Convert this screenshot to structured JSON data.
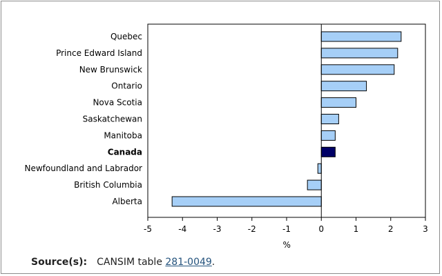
{
  "chart_data": {
    "type": "bar",
    "orientation": "horizontal",
    "categories": [
      "Quebec",
      "Prince Edward Island",
      "New Brunswick",
      "Ontario",
      "Nova Scotia",
      "Saskatchewan",
      "Manitoba",
      "Canada",
      "Newfoundland and Labrador",
      "British Columbia",
      "Alberta"
    ],
    "values": [
      2.3,
      2.2,
      2.1,
      1.3,
      1.0,
      0.5,
      0.4,
      0.4,
      -0.1,
      -0.4,
      -4.3
    ],
    "highlight": "Canada",
    "xlabel": "%",
    "xlim": [
      -5,
      3
    ],
    "xticks": [
      -5,
      -4,
      -3,
      -2,
      -1,
      0,
      1,
      2,
      3
    ],
    "grid": false,
    "colors": {
      "bar": "#a6cff7",
      "highlight": "#000066",
      "outline": "#000000"
    }
  },
  "source": {
    "label": "Source(s):",
    "text": "CANSIM table",
    "link": "281-0049",
    "trailing": "."
  }
}
